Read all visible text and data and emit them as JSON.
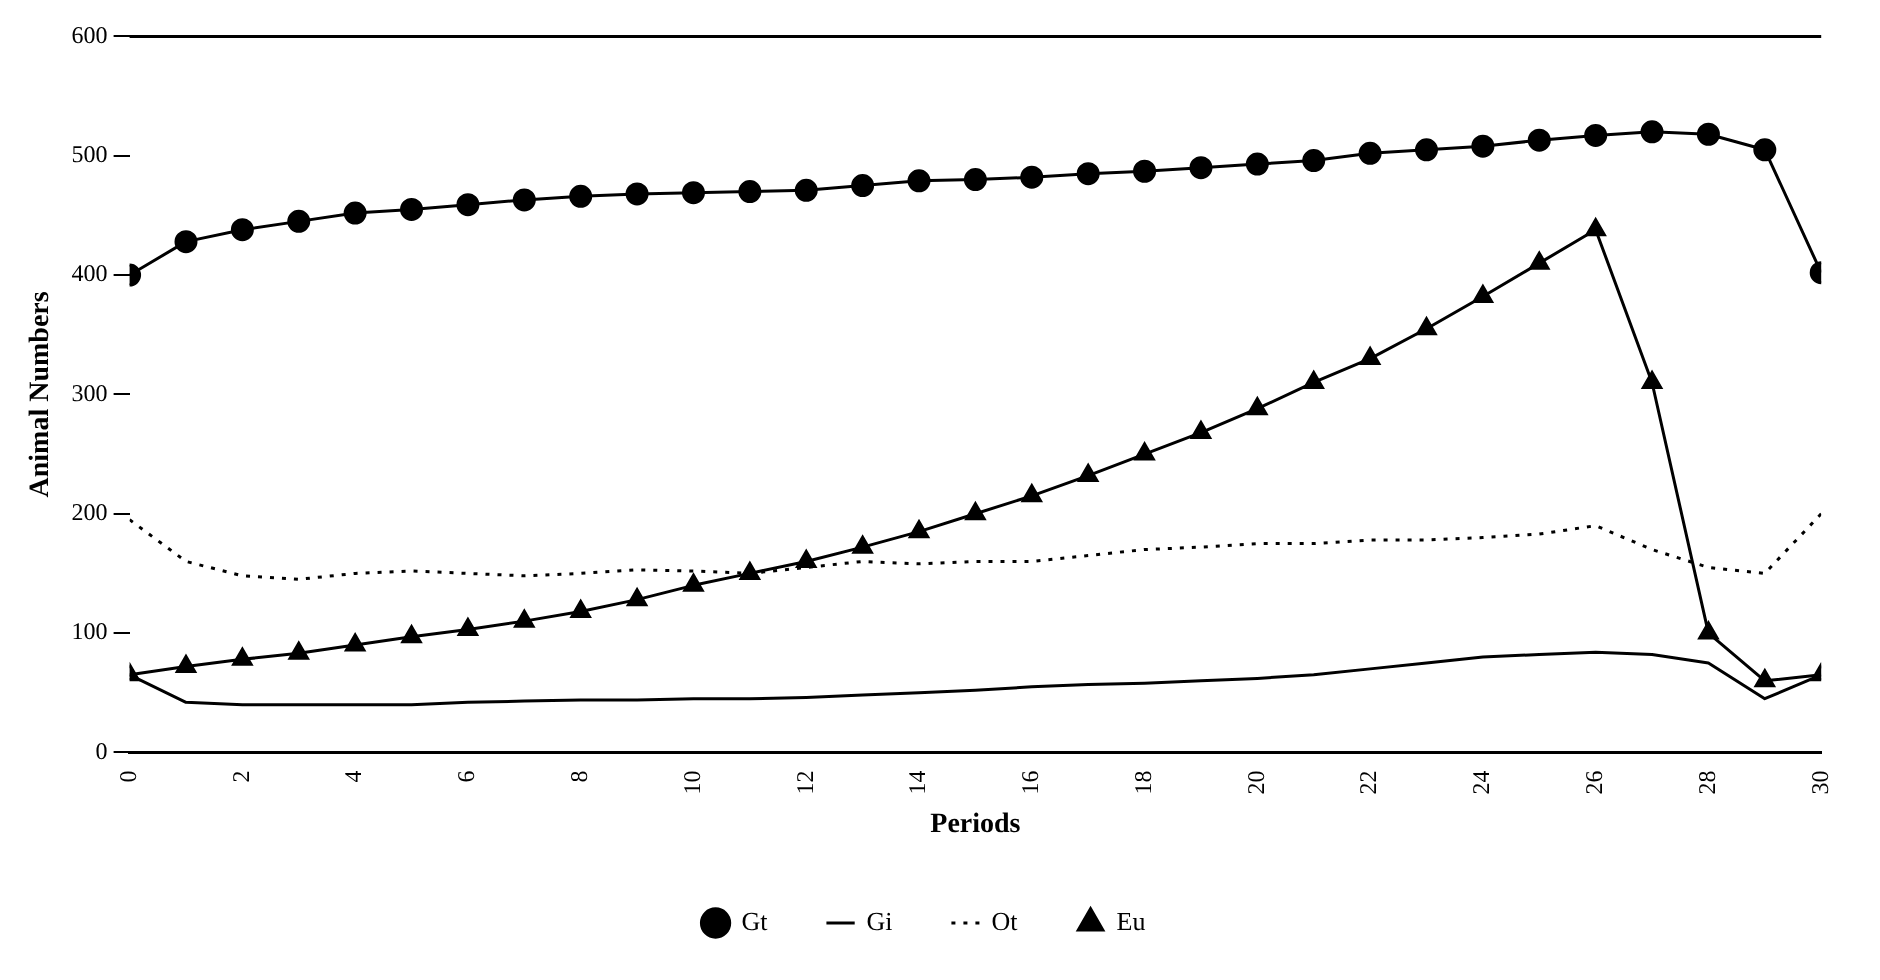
{
  "chart_data": {
    "type": "line",
    "xlabel": "Periods",
    "ylabel": "Animal Numbers",
    "x": [
      0,
      1,
      2,
      3,
      4,
      5,
      6,
      7,
      8,
      9,
      10,
      11,
      12,
      13,
      14,
      15,
      16,
      17,
      18,
      19,
      20,
      21,
      22,
      23,
      24,
      25,
      26,
      27,
      28,
      29,
      30
    ],
    "xlim": [
      0,
      30
    ],
    "xticks": [
      0,
      2,
      4,
      6,
      8,
      10,
      12,
      14,
      16,
      18,
      20,
      22,
      24,
      26,
      28,
      30
    ],
    "ylim": [
      0,
      600
    ],
    "yticks": [
      0,
      100,
      200,
      300,
      400,
      500,
      600
    ],
    "grid": false,
    "legend": "bottom",
    "series": [
      {
        "name": "Gt",
        "color": "#000000",
        "marker": "circle",
        "line_style": "solid",
        "values": [
          400,
          428,
          438,
          445,
          452,
          455,
          459,
          463,
          466,
          468,
          469,
          470,
          471,
          475,
          479,
          480,
          482,
          485,
          487,
          490,
          493,
          496,
          502,
          505,
          508,
          513,
          517,
          520,
          518,
          505,
          402
        ]
      },
      {
        "name": "Gi",
        "color": "#000000",
        "marker": "none",
        "line_style": "solid",
        "values": [
          65,
          42,
          40,
          40,
          40,
          40,
          42,
          43,
          44,
          44,
          45,
          45,
          46,
          48,
          50,
          52,
          55,
          57,
          58,
          60,
          62,
          65,
          70,
          75,
          80,
          82,
          84,
          82,
          75,
          45,
          65
        ]
      },
      {
        "name": "Ot",
        "color": "#000000",
        "marker": "none",
        "line_style": "dotted",
        "values": [
          195,
          160,
          148,
          145,
          150,
          152,
          150,
          148,
          150,
          153,
          152,
          150,
          155,
          160,
          158,
          160,
          160,
          165,
          170,
          172,
          175,
          175,
          178,
          178,
          180,
          183,
          190,
          170,
          155,
          150,
          200
        ]
      },
      {
        "name": "Eu",
        "color": "#000000",
        "marker": "triangle",
        "line_style": "solid",
        "values": [
          65,
          72,
          78,
          83,
          90,
          97,
          103,
          110,
          118,
          128,
          140,
          150,
          160,
          172,
          185,
          200,
          215,
          232,
          250,
          268,
          288,
          310,
          330,
          355,
          382,
          410,
          438,
          310,
          100,
          60,
          65
        ]
      }
    ]
  }
}
